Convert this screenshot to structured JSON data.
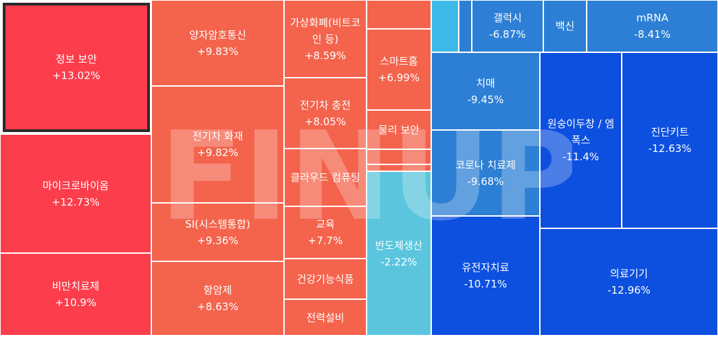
{
  "chart_data": {
    "type": "treemap",
    "watermark": "FINUP",
    "colors": {
      "up_strong": "#fc3d4b",
      "up": "#f4634c",
      "down_light": "#5bc5de",
      "down": "#2c7fd4",
      "down_strong": "#0d50df"
    },
    "tiles": [
      {
        "id": "t1",
        "name": "정보 보안",
        "change": "+13.02%",
        "value": 13.02,
        "color": "#fc3d4b",
        "selected": true
      },
      {
        "id": "t2",
        "name": "마이크로바이옴",
        "change": "+12.73%",
        "value": 12.73,
        "color": "#fc3d4b"
      },
      {
        "id": "t3",
        "name": "비만치료제",
        "change": "+10.9%",
        "value": 10.9,
        "color": "#fc3d4b"
      },
      {
        "id": "t4",
        "name": "양자암호통신",
        "change": "+9.83%",
        "value": 9.83,
        "color": "#f4634c"
      },
      {
        "id": "t5",
        "name": "전기차 화재",
        "change": "+9.82%",
        "value": 9.82,
        "color": "#f4634c"
      },
      {
        "id": "t6",
        "name": "SI(시스템통합)",
        "change": "+9.36%",
        "value": 9.36,
        "color": "#f4634c"
      },
      {
        "id": "t7",
        "name": "항암제",
        "change": "+8.63%",
        "value": 8.63,
        "color": "#f4634c"
      },
      {
        "id": "t8",
        "name": "가상화폐(비트코인 등)",
        "change": "+8.59%",
        "value": 8.59,
        "color": "#f4634c"
      },
      {
        "id": "t9",
        "name": "전기차 충전",
        "change": "+8.05%",
        "value": 8.05,
        "color": "#f4634c"
      },
      {
        "id": "t10",
        "name": "클라우드 컴퓨팅",
        "change": "",
        "color": "#f4634c"
      },
      {
        "id": "t11",
        "name": "교육",
        "change": "+7.7%",
        "value": 7.7,
        "color": "#f4634c"
      },
      {
        "id": "t12",
        "name": "건강기능식품",
        "change": "",
        "color": "#f4634c"
      },
      {
        "id": "t13",
        "name": "전력설비",
        "change": "",
        "color": "#f4634c"
      },
      {
        "id": "t14",
        "name": "",
        "change": "",
        "color": "#f4634c"
      },
      {
        "id": "t15",
        "name": "스마트홈",
        "change": "+6.99%",
        "value": 6.99,
        "color": "#f4634c"
      },
      {
        "id": "t16",
        "name": "물리 보안",
        "change": "",
        "color": "#f4634c"
      },
      {
        "id": "t17",
        "name": "",
        "change": "",
        "color": "#f4634c"
      },
      {
        "id": "t18",
        "name": "",
        "change": "",
        "color": "#f4634c"
      },
      {
        "id": "t19",
        "name": "반도체생산",
        "change": "-2.22%",
        "value": -2.22,
        "color": "#5bc5de"
      },
      {
        "id": "t20",
        "name": "",
        "change": "",
        "color": "#3cb9e8"
      },
      {
        "id": "t21",
        "name": "",
        "change": "",
        "color": "#2c7fd4"
      },
      {
        "id": "t22",
        "name": "갤럭시",
        "change": "-6.87%",
        "value": -6.87,
        "color": "#2c7fd4"
      },
      {
        "id": "t23",
        "name": "백신",
        "change": "",
        "color": "#2c7fd4"
      },
      {
        "id": "t24",
        "name": "mRNA",
        "change": "-8.41%",
        "value": -8.41,
        "color": "#2c7fd4"
      },
      {
        "id": "t25",
        "name": "치매",
        "change": "-9.45%",
        "value": -9.45,
        "color": "#2c7fd4"
      },
      {
        "id": "t26",
        "name": "코로나 치료제",
        "change": "-9.68%",
        "value": -9.68,
        "color": "#2c7fd4"
      },
      {
        "id": "t27",
        "name": "원숭이두창 / 엠폭스",
        "change": "-11.4%",
        "value": -11.4,
        "color": "#0d50df"
      },
      {
        "id": "t28",
        "name": "진단키트",
        "change": "-12.63%",
        "value": -12.63,
        "color": "#0d50df"
      },
      {
        "id": "t29",
        "name": "유전자치료",
        "change": "-10.71%",
        "value": -10.71,
        "color": "#0d50df"
      },
      {
        "id": "t30",
        "name": "의료기기",
        "change": "-12.96%",
        "value": -12.96,
        "color": "#0d50df"
      }
    ]
  }
}
